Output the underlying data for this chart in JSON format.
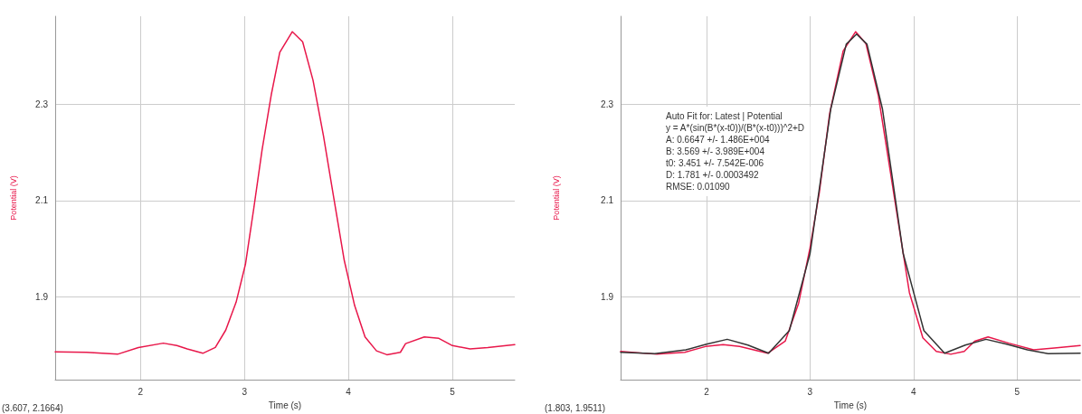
{
  "chart_data": [
    {
      "type": "line",
      "xlabel": "Time (s)",
      "ylabel": "Potential (V)",
      "xlim": [
        1.18,
        5.6
      ],
      "ylim": [
        1.728,
        2.483
      ],
      "xticks": [
        2,
        3,
        4,
        5
      ],
      "yticks": [
        1.9,
        2.1,
        2.3
      ],
      "grid": true,
      "marker": "none",
      "line_style": "solid",
      "annotations": [
        "(3.607, 2.1664)"
      ],
      "series": [
        {
          "color": "#e8174a",
          "x": [
            1.18,
            1.48,
            1.78,
            1.98,
            2.22,
            2.35,
            2.45,
            2.6,
            2.72,
            2.82,
            2.92,
            3.01,
            3.09,
            3.17,
            3.26,
            3.34,
            3.46,
            3.56,
            3.66,
            3.76,
            3.86,
            3.96,
            4.06,
            4.16,
            4.27,
            4.37,
            4.5,
            4.55,
            4.73,
            4.87,
            5.0,
            5.17,
            5.34,
            5.6
          ],
          "values": [
            1.786,
            1.785,
            1.781,
            1.795,
            1.804,
            1.799,
            1.792,
            1.783,
            1.795,
            1.831,
            1.889,
            1.968,
            2.084,
            2.206,
            2.322,
            2.408,
            2.451,
            2.43,
            2.35,
            2.235,
            2.105,
            1.976,
            1.882,
            1.817,
            1.788,
            1.78,
            1.785,
            1.803,
            1.817,
            1.814,
            1.799,
            1.792,
            1.795,
            1.801
          ]
        }
      ]
    },
    {
      "type": "line",
      "xlabel": "Time (s)",
      "ylabel": "Potential (V)",
      "xlim": [
        1.17,
        5.61
      ],
      "ylim": [
        1.728,
        2.483
      ],
      "xticks": [
        2,
        3,
        4,
        5
      ],
      "yticks": [
        1.9,
        2.1,
        2.3
      ],
      "grid": true,
      "marker": "none",
      "line_style": "solid",
      "annotations": [
        "(1.803, 1.9511)",
        "Auto Fit for: Latest | Potential",
        "y = A*(sin(B*(x-t0))/(B*(x-t0)))^2+D",
        "A: 0.6647 +/- 1.486E+004",
        "B: 3.569 +/- 3.989E+004",
        "t0: 3.451 +/- 7.542E-006",
        "D: 1.781 +/- 0.0003492",
        "RMSE: 0.01090"
      ],
      "series": [
        {
          "color": "#e8174a",
          "x": [
            1.17,
            1.52,
            1.79,
            1.99,
            2.16,
            2.32,
            2.59,
            2.76,
            2.89,
            3.0,
            3.09,
            3.19,
            3.32,
            3.44,
            3.54,
            3.66,
            3.76,
            3.86,
            3.96,
            4.09,
            4.22,
            4.36,
            4.49,
            4.59,
            4.72,
            4.92,
            5.16,
            5.36,
            5.61
          ],
          "values": [
            1.787,
            1.781,
            1.785,
            1.797,
            1.801,
            1.797,
            1.783,
            1.808,
            1.887,
            2.002,
            2.117,
            2.282,
            2.411,
            2.451,
            2.426,
            2.318,
            2.182,
            2.045,
            1.909,
            1.815,
            1.787,
            1.781,
            1.787,
            1.808,
            1.817,
            1.804,
            1.79,
            1.794,
            1.799
          ]
        },
        {
          "color": "#333333",
          "x": [
            1.17,
            1.5,
            1.8,
            2.0,
            2.2,
            2.4,
            2.6,
            2.8,
            3.0,
            3.2,
            3.35,
            3.45,
            3.55,
            3.7,
            3.9,
            4.1,
            4.3,
            4.5,
            4.7,
            4.9,
            5.1,
            5.3,
            5.61
          ],
          "values": [
            1.785,
            1.782,
            1.79,
            1.802,
            1.812,
            1.8,
            1.783,
            1.83,
            1.99,
            2.29,
            2.425,
            2.446,
            2.425,
            2.29,
            1.99,
            1.83,
            1.783,
            1.8,
            1.812,
            1.802,
            1.79,
            1.782,
            1.783
          ]
        }
      ]
    }
  ]
}
